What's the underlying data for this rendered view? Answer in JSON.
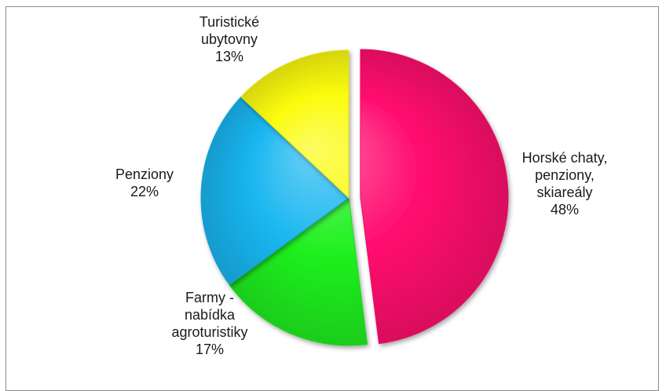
{
  "chart_data": {
    "type": "pie",
    "title": "",
    "exploded": "Horské chaty, penziony, skiareály",
    "slices": [
      {
        "label": "Horské chaty, penziony, skiareály",
        "label_lines": [
          "Horské chaty,",
          "penziony,",
          "skiareály"
        ],
        "value": 48,
        "percent_text": "48%",
        "color": "#ff0a6e"
      },
      {
        "label": "Farmy - nabídka agroturistiky",
        "label_lines": [
          "Farmy -",
          "nabídka",
          "agroturistiky"
        ],
        "value": 17,
        "percent_text": "17%",
        "color": "#1ff01f"
      },
      {
        "label": "Penziony",
        "label_lines": [
          "Penziony"
        ],
        "value": 22,
        "percent_text": "22%",
        "color": "#1ab6f0"
      },
      {
        "label": "Turistické ubytovny",
        "label_lines": [
          "Turistické",
          "ubytovny"
        ],
        "value": 13,
        "percent_text": "13%",
        "color": "#fbfb0c"
      }
    ]
  }
}
